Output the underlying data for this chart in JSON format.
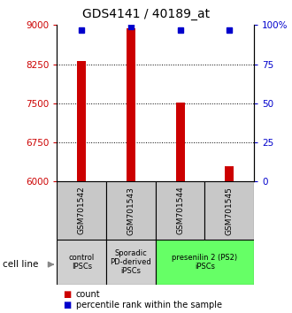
{
  "title": "GDS4141 / 40189_at",
  "samples": [
    "GSM701542",
    "GSM701543",
    "GSM701544",
    "GSM701545"
  ],
  "counts": [
    8310,
    8940,
    7510,
    6300
  ],
  "percentiles": [
    97,
    99,
    97,
    97
  ],
  "ylim_left": [
    6000,
    9000
  ],
  "yticks_left": [
    6000,
    6750,
    7500,
    8250,
    9000
  ],
  "ylim_right": [
    0,
    100
  ],
  "yticks_right": [
    0,
    25,
    50,
    75,
    100
  ],
  "bar_color": "#cc0000",
  "percentile_color": "#0000cc",
  "cell_line_labels": [
    "control\nIPSCs",
    "Sporadic\nPD-derived\niPSCs",
    "presenilin 2 (PS2)\niPSCs"
  ],
  "cell_line_groups": [
    [
      0
    ],
    [
      1
    ],
    [
      2,
      3
    ]
  ],
  "cell_line_colors": [
    "#d0d0d0",
    "#d0d0d0",
    "#66ff66"
  ],
  "background_color": "#ffffff",
  "title_fontsize": 10,
  "tick_label_color_left": "#cc0000",
  "tick_label_color_right": "#0000cc",
  "bar_width": 0.18,
  "legend_count_color": "#cc0000",
  "legend_percentile_color": "#0000cc",
  "gsm_box_color": "#c8c8c8"
}
